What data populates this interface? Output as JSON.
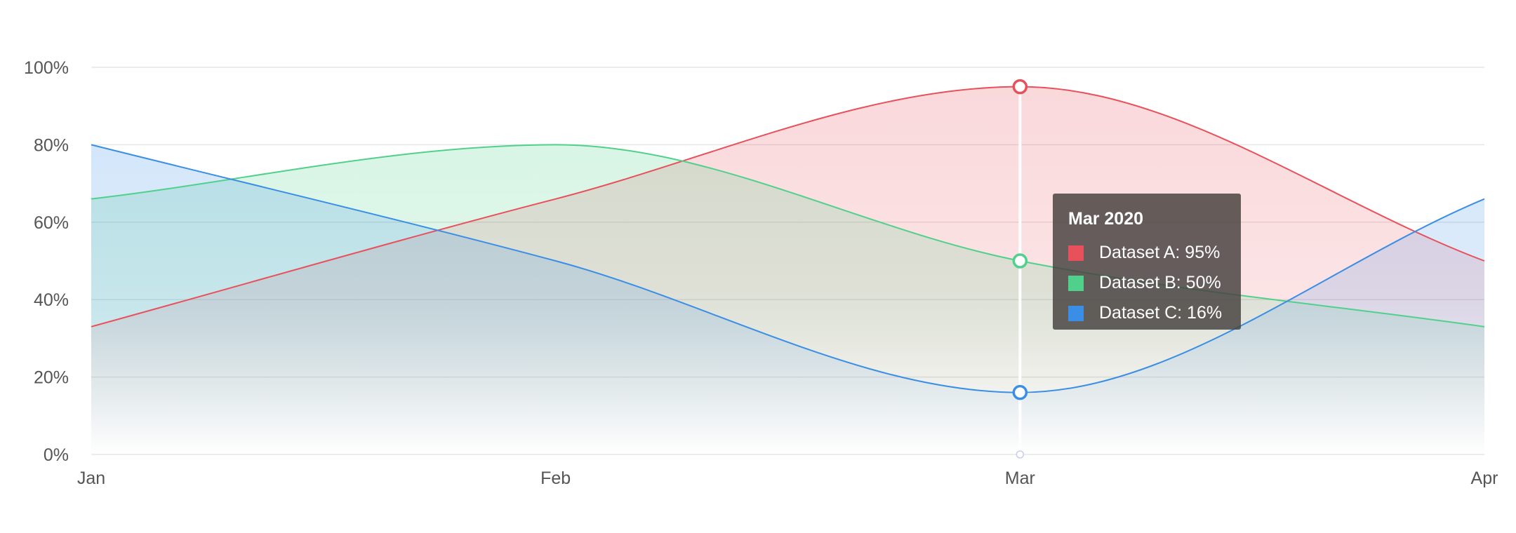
{
  "chart_data": {
    "type": "area",
    "x": [
      "Jan",
      "Feb",
      "Mar",
      "Apr"
    ],
    "ylim": [
      0,
      100
    ],
    "y_ticks": [
      "0%",
      "20%",
      "40%",
      "60%",
      "80%",
      "100%"
    ],
    "grid": true,
    "series": [
      {
        "name": "Dataset A",
        "values": [
          33,
          66,
          95,
          50
        ],
        "color": "#e8505b"
      },
      {
        "name": "Dataset B",
        "values": [
          66,
          80,
          50,
          33
        ],
        "color": "#4fd18b"
      },
      {
        "name": "Dataset C",
        "values": [
          80,
          50,
          16,
          66
        ],
        "color": "#3a8ee6"
      }
    ],
    "hover_index": 2,
    "tooltip": {
      "title": "Mar 2020",
      "rows": [
        {
          "label": "Dataset A: 95%",
          "color": "#e8505b"
        },
        {
          "label": "Dataset B: 50%",
          "color": "#4fd18b"
        },
        {
          "label": "Dataset C: 16%",
          "color": "#3a8ee6"
        }
      ]
    }
  }
}
